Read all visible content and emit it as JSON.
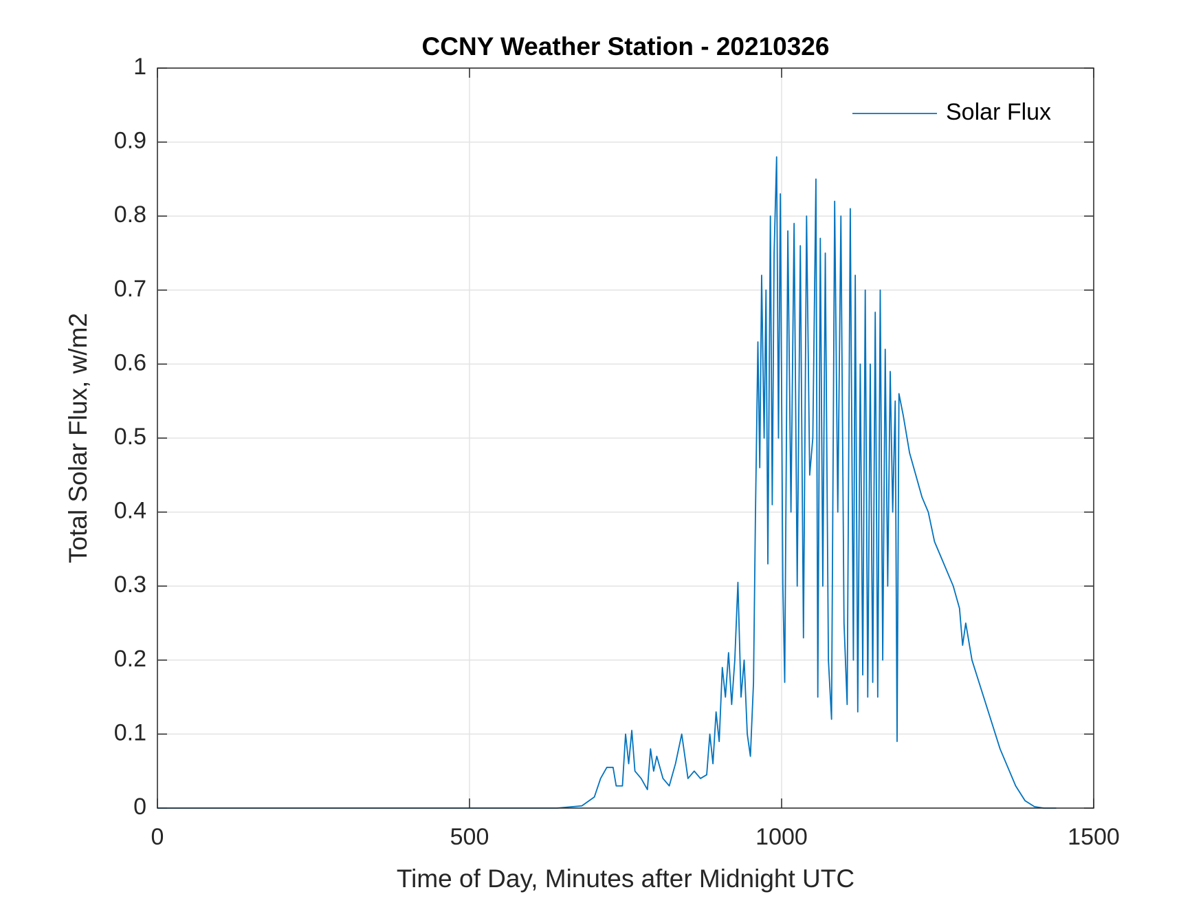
{
  "chart_data": {
    "type": "line",
    "title": "CCNY Weather Station - 20210326",
    "xlabel": "Time of Day, Minutes after Midnight UTC",
    "ylabel": "Total Solar Flux, w/m2",
    "x": [
      0,
      640,
      680,
      700,
      710,
      720,
      730,
      735,
      745,
      750,
      755,
      760,
      765,
      775,
      785,
      790,
      795,
      800,
      810,
      820,
      830,
      840,
      850,
      860,
      870,
      880,
      885,
      890,
      895,
      900,
      905,
      910,
      915,
      920,
      925,
      930,
      935,
      940,
      945,
      950,
      955,
      958,
      962,
      965,
      968,
      972,
      975,
      978,
      982,
      985,
      988,
      992,
      995,
      998,
      1002,
      1005,
      1010,
      1015,
      1020,
      1025,
      1030,
      1035,
      1040,
      1045,
      1050,
      1055,
      1058,
      1062,
      1066,
      1070,
      1075,
      1080,
      1085,
      1090,
      1095,
      1100,
      1105,
      1110,
      1115,
      1118,
      1122,
      1126,
      1130,
      1134,
      1138,
      1142,
      1146,
      1150,
      1154,
      1158,
      1162,
      1166,
      1170,
      1174,
      1178,
      1182,
      1185,
      1188,
      1195,
      1205,
      1215,
      1225,
      1235,
      1245,
      1255,
      1265,
      1275,
      1285,
      1290,
      1295,
      1305,
      1320,
      1335,
      1350,
      1365,
      1375,
      1390,
      1405,
      1420,
      1440
    ],
    "series": [
      {
        "name": "Solar Flux",
        "color": "#0072bd",
        "values": [
          0,
          0,
          0.003,
          0.015,
          0.04,
          0.055,
          0.055,
          0.03,
          0.03,
          0.1,
          0.06,
          0.105,
          0.05,
          0.04,
          0.025,
          0.08,
          0.05,
          0.07,
          0.04,
          0.03,
          0.06,
          0.1,
          0.04,
          0.05,
          0.04,
          0.045,
          0.1,
          0.06,
          0.13,
          0.09,
          0.19,
          0.15,
          0.21,
          0.14,
          0.2,
          0.305,
          0.15,
          0.2,
          0.1,
          0.07,
          0.17,
          0.39,
          0.63,
          0.46,
          0.72,
          0.5,
          0.7,
          0.33,
          0.8,
          0.41,
          0.75,
          0.88,
          0.5,
          0.83,
          0.3,
          0.17,
          0.78,
          0.4,
          0.79,
          0.3,
          0.76,
          0.23,
          0.8,
          0.45,
          0.5,
          0.85,
          0.15,
          0.77,
          0.3,
          0.75,
          0.2,
          0.12,
          0.82,
          0.4,
          0.8,
          0.25,
          0.14,
          0.81,
          0.2,
          0.72,
          0.13,
          0.6,
          0.18,
          0.7,
          0.15,
          0.6,
          0.17,
          0.67,
          0.15,
          0.7,
          0.2,
          0.62,
          0.3,
          0.59,
          0.4,
          0.55,
          0.09,
          0.56,
          0.53,
          0.48,
          0.45,
          0.42,
          0.4,
          0.36,
          0.34,
          0.32,
          0.3,
          0.27,
          0.22,
          0.25,
          0.2,
          0.16,
          0.12,
          0.08,
          0.05,
          0.03,
          0.01,
          0.002,
          0,
          0
        ]
      }
    ],
    "xlim": [
      0,
      1500
    ],
    "xticks": [
      0,
      500,
      1000,
      1500
    ],
    "ylim": [
      0,
      1
    ],
    "yticks": [
      0,
      0.1,
      0.2,
      0.3,
      0.4,
      0.5,
      0.6,
      0.7,
      0.8,
      0.9,
      1
    ],
    "grid": true,
    "legend": "upper right"
  }
}
